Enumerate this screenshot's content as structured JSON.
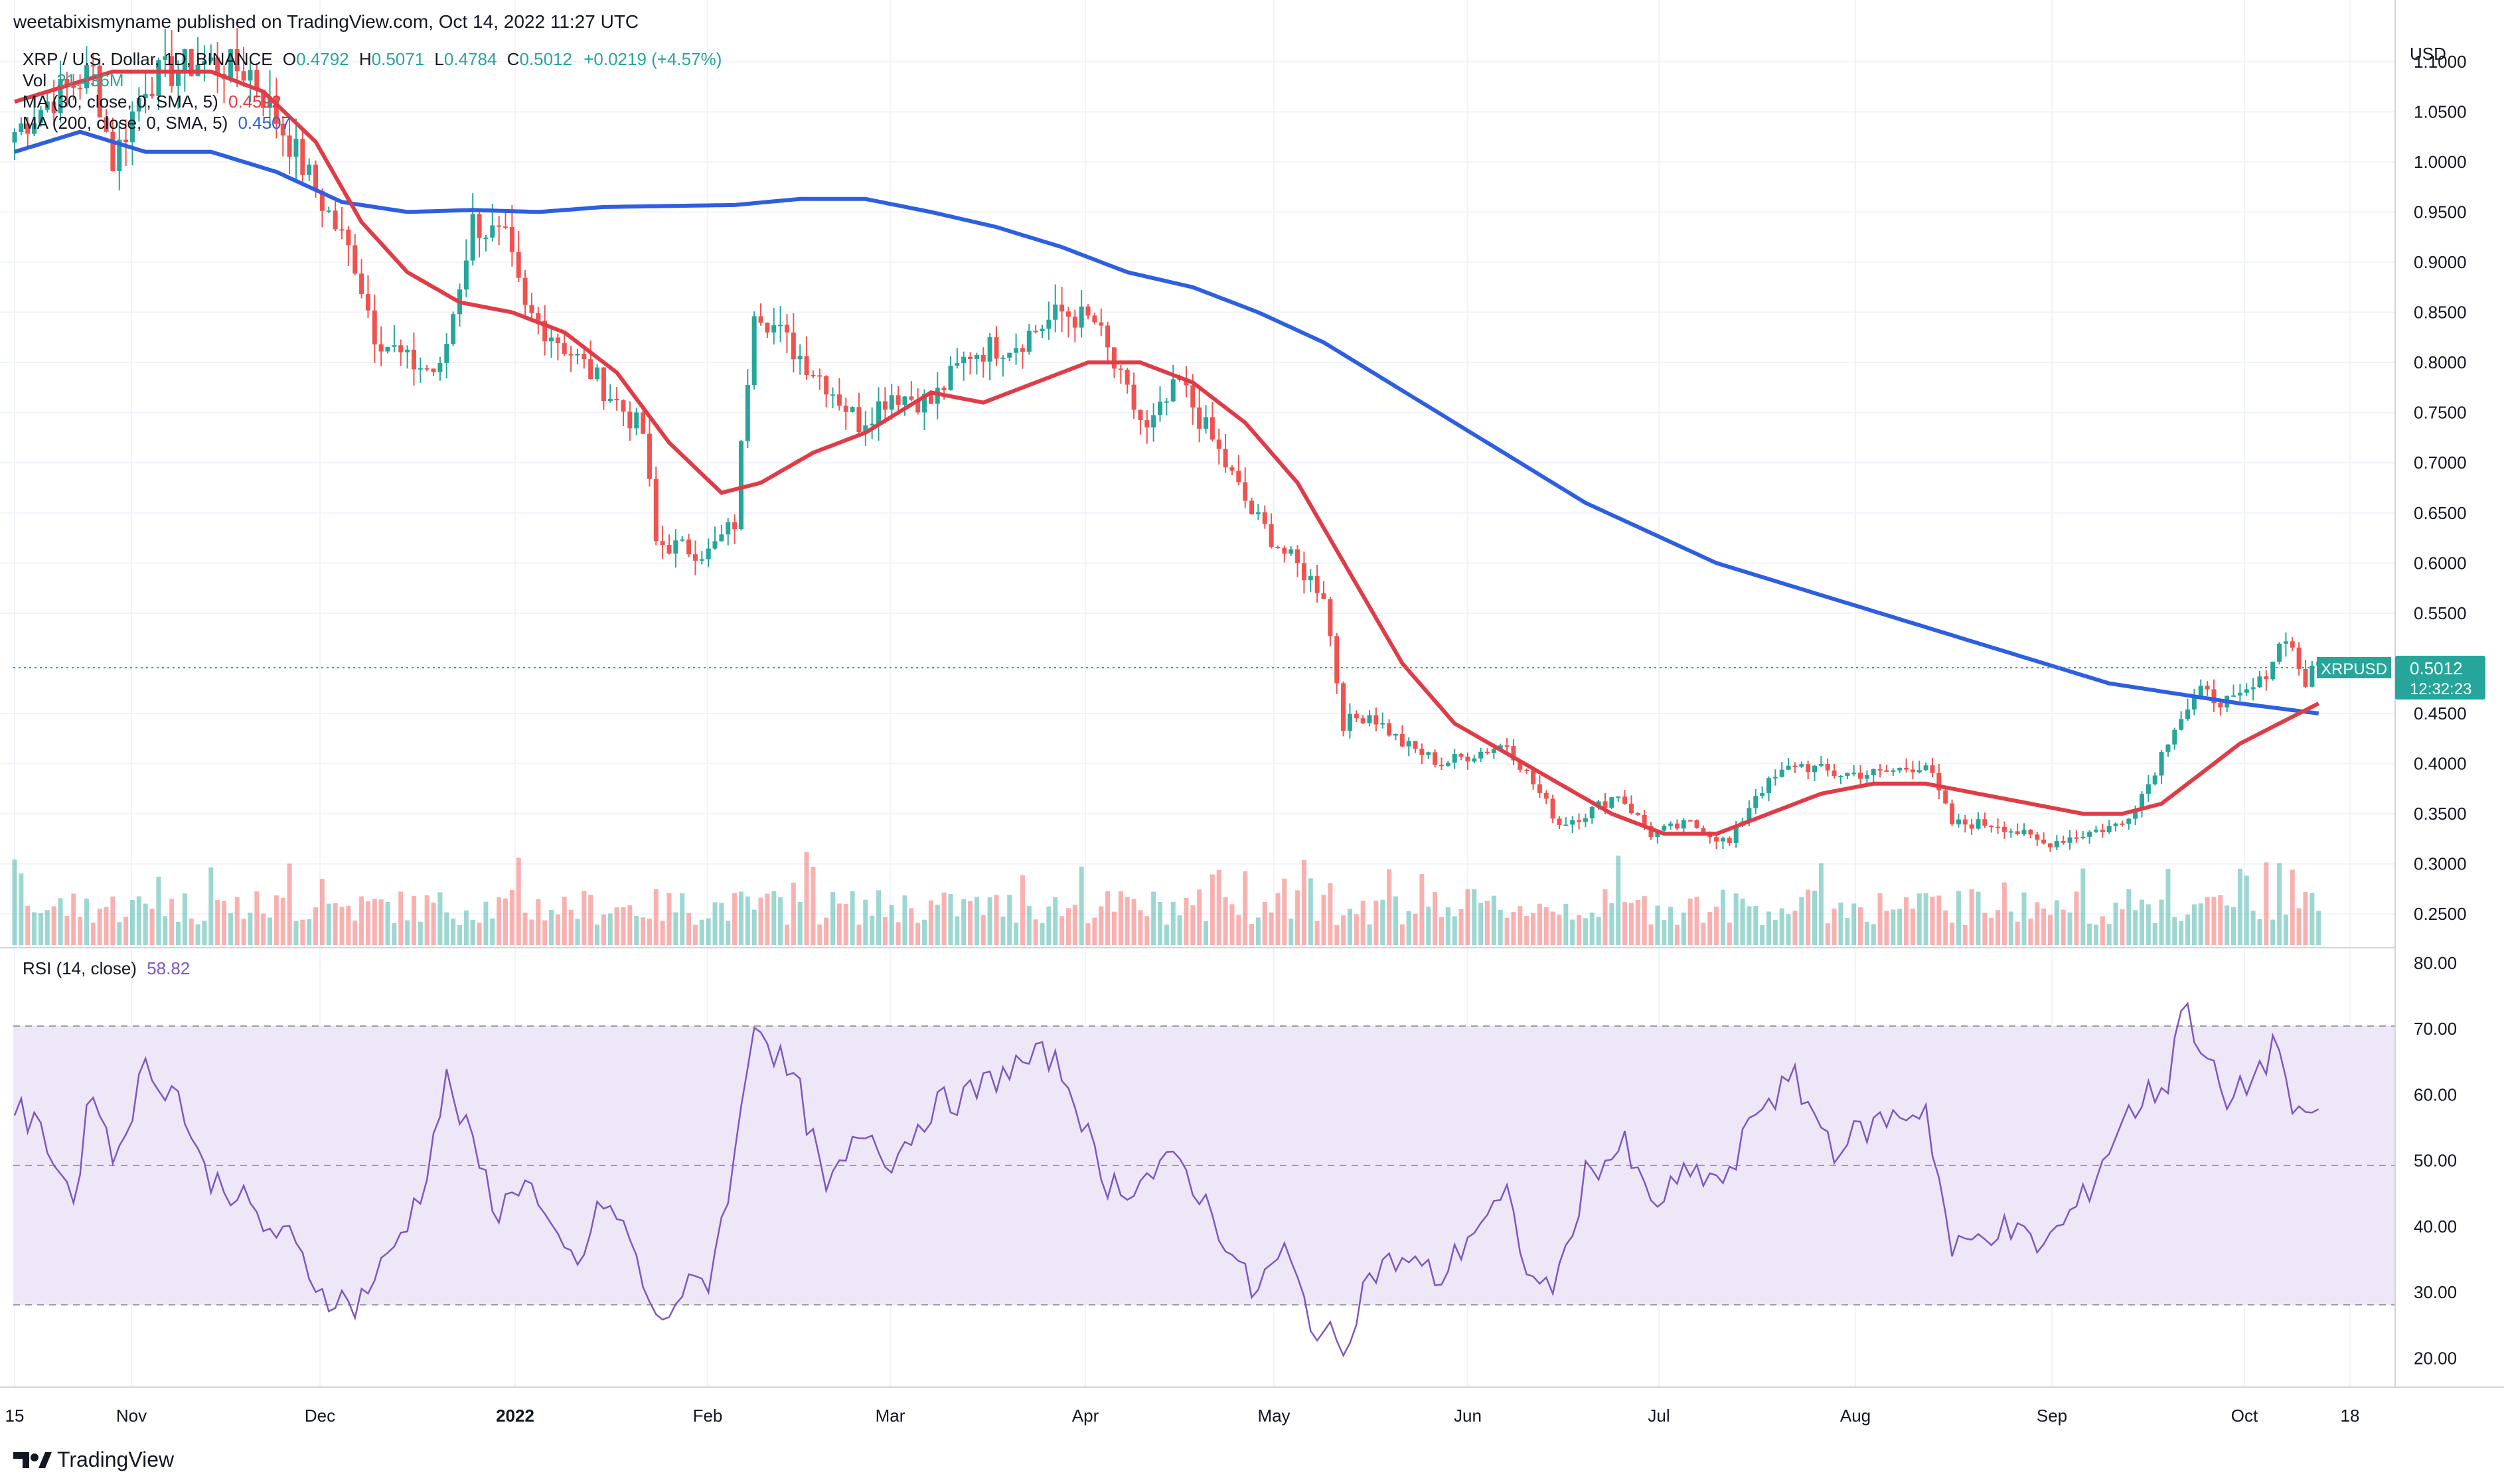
{
  "header": {
    "publisher": "weetabixismyname published on TradingView.com, Oct 14, 2022 11:27 UTC"
  },
  "legend": {
    "symbol": "XRP / U.S. Dollar, 1D, BINANCE",
    "ohlc": [
      {
        "label": "O",
        "value": "0.4792"
      },
      {
        "label": "H",
        "value": "0.5071"
      },
      {
        "label": "L",
        "value": "0.4784"
      },
      {
        "label": "C",
        "value": "0.5012"
      }
    ],
    "change": "+0.0219 (+4.57%)",
    "vol_label": "Vol",
    "vol_value": "21.436M",
    "ma30_label": "MA (30, close, 0, SMA, 5)",
    "ma30_value": "0.4592",
    "ma200_label": "MA (200, close, 0, SMA, 5)",
    "ma200_value": "0.4507"
  },
  "price_tag": {
    "symbol": "XRPUSD",
    "price": "0.5012",
    "countdown": "12:32:23"
  },
  "rsi": {
    "label": "RSI (14, close)",
    "value": "58.82"
  },
  "footer": {
    "brand": "TradingView"
  },
  "colors": {
    "up": "#26a69a",
    "down": "#ef5350",
    "ma30": "#e03c48",
    "ma200": "#2e5fe0",
    "rsi": "#7e57c2",
    "rsi_band": "#ede7f8"
  },
  "chart_data": {
    "type": "candlestick",
    "price_axis": {
      "unit": "USD",
      "ticks": [
        "1.1000",
        "1.0500",
        "1.0000",
        "0.9500",
        "0.9000",
        "0.8500",
        "0.8000",
        "0.7500",
        "0.7000",
        "0.6500",
        "0.6000",
        "0.5500",
        "0.4500",
        "0.4000",
        "0.3500",
        "0.3000",
        "0.2500"
      ],
      "range": [
        0.225,
        1.125
      ]
    },
    "rsi_axis": {
      "ticks": [
        "80.00",
        "70.00",
        "60.00",
        "50.00",
        "40.00",
        "30.00",
        "20.00"
      ],
      "range": [
        16,
        81
      ],
      "bands": [
        30,
        50,
        70
      ]
    },
    "x_axis": {
      "labels": [
        "15",
        "Nov",
        "Dec",
        "2022",
        "Feb",
        "Mar",
        "Apr",
        "May",
        "Jun",
        "Jul",
        "Aug",
        "Sep",
        "Oct",
        "18"
      ]
    },
    "start_date": "2021-10-15",
    "price_anchors": [
      [
        0,
        1.03
      ],
      [
        5,
        1.06
      ],
      [
        12,
        1.09
      ],
      [
        15,
        1.0
      ],
      [
        20,
        1.08
      ],
      [
        28,
        1.1
      ],
      [
        36,
        1.09
      ],
      [
        42,
        1.02
      ],
      [
        47,
        0.96
      ],
      [
        52,
        0.9
      ],
      [
        55,
        0.83
      ],
      [
        60,
        0.8
      ],
      [
        65,
        0.79
      ],
      [
        70,
        0.94
      ],
      [
        75,
        0.92
      ],
      [
        78,
        0.85
      ],
      [
        82,
        0.83
      ],
      [
        88,
        0.79
      ],
      [
        92,
        0.76
      ],
      [
        96,
        0.73
      ],
      [
        98,
        0.62
      ],
      [
        106,
        0.61
      ],
      [
        110,
        0.64
      ],
      [
        113,
        0.86
      ],
      [
        118,
        0.82
      ],
      [
        124,
        0.78
      ],
      [
        129,
        0.74
      ],
      [
        134,
        0.77
      ],
      [
        140,
        0.76
      ],
      [
        146,
        0.81
      ],
      [
        153,
        0.82
      ],
      [
        160,
        0.85
      ],
      [
        165,
        0.84
      ],
      [
        169,
        0.78
      ],
      [
        173,
        0.73
      ],
      [
        178,
        0.78
      ],
      [
        184,
        0.71
      ],
      [
        189,
        0.65
      ],
      [
        194,
        0.61
      ],
      [
        200,
        0.57
      ],
      [
        203,
        0.44
      ],
      [
        207,
        0.45
      ],
      [
        212,
        0.42
      ],
      [
        218,
        0.4
      ],
      [
        223,
        0.41
      ],
      [
        228,
        0.42
      ],
      [
        232,
        0.38
      ],
      [
        236,
        0.34
      ],
      [
        240,
        0.35
      ],
      [
        245,
        0.37
      ],
      [
        250,
        0.33
      ],
      [
        256,
        0.34
      ],
      [
        262,
        0.32
      ],
      [
        266,
        0.37
      ],
      [
        272,
        0.4
      ],
      [
        278,
        0.39
      ],
      [
        285,
        0.39
      ],
      [
        292,
        0.4
      ],
      [
        296,
        0.34
      ],
      [
        303,
        0.34
      ],
      [
        310,
        0.32
      ],
      [
        316,
        0.33
      ],
      [
        322,
        0.34
      ],
      [
        326,
        0.38
      ],
      [
        330,
        0.44
      ],
      [
        334,
        0.47
      ],
      [
        339,
        0.46
      ],
      [
        343,
        0.48
      ],
      [
        347,
        0.53
      ],
      [
        350,
        0.48
      ],
      [
        352,
        0.5
      ]
    ],
    "rsi_anchors": [
      [
        0,
        58
      ],
      [
        5,
        53
      ],
      [
        9,
        44
      ],
      [
        12,
        62
      ],
      [
        15,
        50
      ],
      [
        20,
        64
      ],
      [
        25,
        60
      ],
      [
        29,
        48
      ],
      [
        34,
        45
      ],
      [
        38,
        40
      ],
      [
        42,
        38
      ],
      [
        47,
        30
      ],
      [
        52,
        28
      ],
      [
        57,
        35
      ],
      [
        62,
        45
      ],
      [
        66,
        62
      ],
      [
        70,
        52
      ],
      [
        74,
        42
      ],
      [
        78,
        48
      ],
      [
        82,
        38
      ],
      [
        86,
        34
      ],
      [
        90,
        44
      ],
      [
        94,
        38
      ],
      [
        98,
        25
      ],
      [
        102,
        30
      ],
      [
        106,
        32
      ],
      [
        110,
        50
      ],
      [
        113,
        72
      ],
      [
        117,
        65
      ],
      [
        120,
        60
      ],
      [
        124,
        45
      ],
      [
        130,
        55
      ],
      [
        134,
        50
      ],
      [
        140,
        58
      ],
      [
        146,
        60
      ],
      [
        152,
        64
      ],
      [
        158,
        66
      ],
      [
        162,
        60
      ],
      [
        166,
        47
      ],
      [
        170,
        46
      ],
      [
        174,
        48
      ],
      [
        178,
        50
      ],
      [
        184,
        40
      ],
      [
        189,
        30
      ],
      [
        194,
        36
      ],
      [
        199,
        24
      ],
      [
        203,
        22
      ],
      [
        207,
        33
      ],
      [
        212,
        35
      ],
      [
        218,
        32
      ],
      [
        223,
        40
      ],
      [
        228,
        44
      ],
      [
        232,
        31
      ],
      [
        236,
        32
      ],
      [
        240,
        48
      ],
      [
        246,
        52
      ],
      [
        250,
        43
      ],
      [
        256,
        48
      ],
      [
        262,
        47
      ],
      [
        266,
        58
      ],
      [
        272,
        62
      ],
      [
        278,
        52
      ],
      [
        285,
        56
      ],
      [
        292,
        58
      ],
      [
        296,
        36
      ],
      [
        303,
        40
      ],
      [
        310,
        37
      ],
      [
        316,
        44
      ],
      [
        322,
        56
      ],
      [
        326,
        60
      ],
      [
        329,
        62
      ],
      [
        331,
        74
      ],
      [
        334,
        68
      ],
      [
        338,
        58
      ],
      [
        343,
        64
      ],
      [
        346,
        68
      ],
      [
        348,
        57
      ],
      [
        350,
        55
      ],
      [
        352,
        59
      ]
    ],
    "ma30_anchors": [
      [
        0,
        1.06
      ],
      [
        15,
        1.09
      ],
      [
        30,
        1.09
      ],
      [
        38,
        1.07
      ],
      [
        46,
        1.02
      ],
      [
        53,
        0.94
      ],
      [
        60,
        0.89
      ],
      [
        68,
        0.86
      ],
      [
        76,
        0.85
      ],
      [
        84,
        0.83
      ],
      [
        92,
        0.79
      ],
      [
        100,
        0.72
      ],
      [
        108,
        0.67
      ],
      [
        114,
        0.68
      ],
      [
        122,
        0.71
      ],
      [
        130,
        0.73
      ],
      [
        140,
        0.77
      ],
      [
        148,
        0.76
      ],
      [
        156,
        0.78
      ],
      [
        164,
        0.8
      ],
      [
        172,
        0.8
      ],
      [
        180,
        0.78
      ],
      [
        188,
        0.74
      ],
      [
        196,
        0.68
      ],
      [
        204,
        0.59
      ],
      [
        212,
        0.5
      ],
      [
        220,
        0.44
      ],
      [
        228,
        0.41
      ],
      [
        236,
        0.38
      ],
      [
        244,
        0.35
      ],
      [
        252,
        0.33
      ],
      [
        260,
        0.33
      ],
      [
        268,
        0.35
      ],
      [
        276,
        0.37
      ],
      [
        284,
        0.38
      ],
      [
        292,
        0.38
      ],
      [
        300,
        0.37
      ],
      [
        308,
        0.36
      ],
      [
        316,
        0.35
      ],
      [
        322,
        0.35
      ],
      [
        328,
        0.36
      ],
      [
        334,
        0.39
      ],
      [
        340,
        0.42
      ],
      [
        346,
        0.44
      ],
      [
        352,
        0.46
      ]
    ],
    "ma200_anchors": [
      [
        0,
        1.01
      ],
      [
        10,
        1.03
      ],
      [
        20,
        1.01
      ],
      [
        30,
        1.01
      ],
      [
        40,
        0.99
      ],
      [
        50,
        0.96
      ],
      [
        60,
        0.95
      ],
      [
        70,
        0.952
      ],
      [
        80,
        0.95
      ],
      [
        90,
        0.955
      ],
      [
        100,
        0.956
      ],
      [
        110,
        0.957
      ],
      [
        120,
        0.963
      ],
      [
        130,
        0.963
      ],
      [
        140,
        0.95
      ],
      [
        150,
        0.935
      ],
      [
        160,
        0.915
      ],
      [
        170,
        0.89
      ],
      [
        180,
        0.875
      ],
      [
        190,
        0.85
      ],
      [
        200,
        0.82
      ],
      [
        210,
        0.78
      ],
      [
        220,
        0.74
      ],
      [
        230,
        0.7
      ],
      [
        240,
        0.66
      ],
      [
        250,
        0.63
      ],
      [
        260,
        0.6
      ],
      [
        270,
        0.58
      ],
      [
        280,
        0.56
      ],
      [
        290,
        0.54
      ],
      [
        300,
        0.52
      ],
      [
        310,
        0.5
      ],
      [
        320,
        0.48
      ],
      [
        330,
        0.47
      ],
      [
        340,
        0.46
      ],
      [
        352,
        0.45
      ]
    ]
  }
}
